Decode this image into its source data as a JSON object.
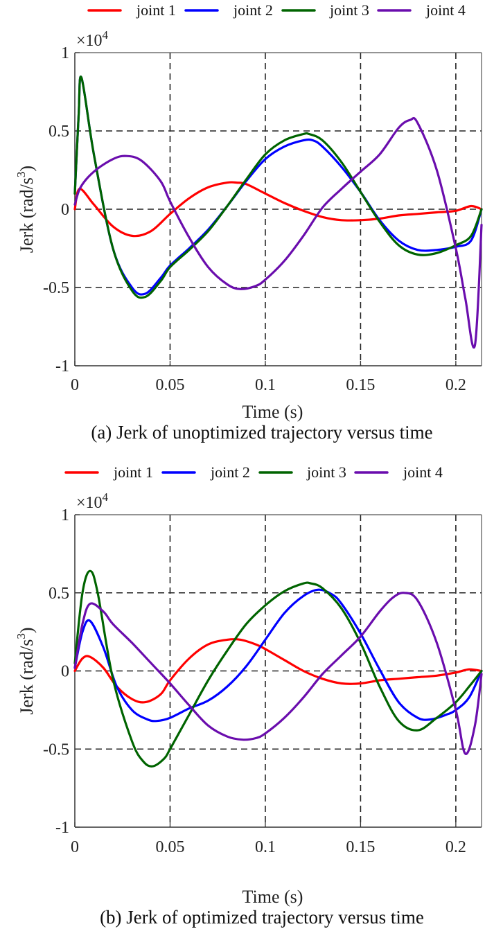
{
  "chart_data": [
    {
      "type": "line",
      "id": "a",
      "caption": "(a) Jerk of unoptimized trajectory versus time",
      "xlabel": "Time (s)",
      "ylabel": "Jerk (rad/s",
      "ylabel_sup": "3",
      "ylabel_close": ")",
      "y_multiplier": "×10",
      "y_multiplier_exp": "4",
      "xlim": [
        0,
        0.2135
      ],
      "ylim": [
        -1,
        1
      ],
      "xticks": [
        0,
        0.05,
        0.1,
        0.15,
        0.2
      ],
      "xtick_labels": [
        "0",
        "0.05",
        "0.1",
        "0.15",
        "0.2"
      ],
      "yticks": [
        -1,
        -0.5,
        0,
        0.5,
        1
      ],
      "ytick_labels": [
        "-1",
        "-0.5",
        "0",
        "0.5",
        "1"
      ],
      "grid": true,
      "legend": "top",
      "series": [
        {
          "name": "joint 1",
          "color": "#ff0000",
          "x": [
            0,
            0.0025,
            0.01,
            0.02,
            0.03,
            0.04,
            0.05,
            0.06,
            0.07,
            0.08,
            0.085,
            0.09,
            0.1,
            0.11,
            0.12,
            0.13,
            0.14,
            0.15,
            0.16,
            0.17,
            0.18,
            0.19,
            0.2,
            0.208,
            0.2135
          ],
          "y": [
            0,
            0.13,
            0.03,
            -0.11,
            -0.17,
            -0.14,
            -0.03,
            0.07,
            0.14,
            0.17,
            0.17,
            0.16,
            0.1,
            0.04,
            -0.01,
            -0.05,
            -0.07,
            -0.07,
            -0.06,
            -0.04,
            -0.03,
            -0.02,
            -0.01,
            0.02,
            0
          ]
        },
        {
          "name": "joint 2",
          "color": "#0000ff",
          "x": [
            0,
            0.002,
            0.0035,
            0.01,
            0.02,
            0.03,
            0.037,
            0.045,
            0.05,
            0.06,
            0.07,
            0.08,
            0.09,
            0.1,
            0.11,
            0.12,
            0.125,
            0.13,
            0.14,
            0.15,
            0.16,
            0.17,
            0.18,
            0.19,
            0.2,
            0.208,
            0.2135
          ],
          "y": [
            0.1,
            0.6,
            0.84,
            0.35,
            -0.25,
            -0.5,
            -0.54,
            -0.44,
            -0.36,
            -0.25,
            -0.13,
            0.02,
            0.18,
            0.32,
            0.4,
            0.44,
            0.44,
            0.4,
            0.27,
            0.11,
            -0.07,
            -0.2,
            -0.26,
            -0.26,
            -0.24,
            -0.2,
            0
          ]
        },
        {
          "name": "joint 3",
          "color": "#006400",
          "x": [
            0,
            0.002,
            0.0035,
            0.01,
            0.02,
            0.03,
            0.037,
            0.045,
            0.05,
            0.06,
            0.07,
            0.08,
            0.09,
            0.1,
            0.11,
            0.12,
            0.123,
            0.13,
            0.14,
            0.15,
            0.16,
            0.17,
            0.18,
            0.19,
            0.2,
            0.208,
            0.2135
          ],
          "y": [
            0.1,
            0.6,
            0.84,
            0.35,
            -0.25,
            -0.52,
            -0.56,
            -0.46,
            -0.37,
            -0.26,
            -0.14,
            0.02,
            0.19,
            0.35,
            0.44,
            0.48,
            0.48,
            0.44,
            0.3,
            0.11,
            -0.08,
            -0.23,
            -0.29,
            -0.28,
            -0.23,
            -0.17,
            0
          ]
        },
        {
          "name": "joint 4",
          "color": "#6a0dad",
          "x": [
            0,
            0.003,
            0.01,
            0.02,
            0.027,
            0.035,
            0.045,
            0.05,
            0.06,
            0.07,
            0.08,
            0.087,
            0.095,
            0.1,
            0.11,
            0.12,
            0.13,
            0.14,
            0.15,
            0.16,
            0.17,
            0.176,
            0.18,
            0.19,
            0.2,
            0.205,
            0.21,
            0.2135
          ],
          "y": [
            0.03,
            0.14,
            0.24,
            0.32,
            0.34,
            0.31,
            0.18,
            0.05,
            -0.18,
            -0.37,
            -0.48,
            -0.51,
            -0.49,
            -0.45,
            -0.33,
            -0.17,
            0.01,
            0.13,
            0.24,
            0.35,
            0.52,
            0.57,
            0.55,
            0.25,
            -0.25,
            -0.57,
            -0.87,
            -0.1
          ]
        }
      ]
    },
    {
      "type": "line",
      "id": "b",
      "caption": "(b) Jerk of optimized trajectory versus time",
      "xlabel": "Time (s)",
      "ylabel": "Jerk (rad/s",
      "ylabel_sup": "3",
      "ylabel_close": ")",
      "y_multiplier": "×10",
      "y_multiplier_exp": "4",
      "xlim": [
        0,
        0.2135
      ],
      "ylim": [
        -1,
        1
      ],
      "xticks": [
        0,
        0.05,
        0.1,
        0.15,
        0.2
      ],
      "xtick_labels": [
        "0",
        "0.05",
        "0.1",
        "0.15",
        "0.2"
      ],
      "yticks": [
        -1,
        -0.5,
        0,
        0.5,
        1
      ],
      "ytick_labels": [
        "-1",
        "-0.5",
        "0",
        "0.5",
        "1"
      ],
      "grid": true,
      "legend": "top",
      "series": [
        {
          "name": "joint 1",
          "color": "#ff0000",
          "x": [
            0,
            0.004,
            0.008,
            0.015,
            0.022,
            0.03,
            0.037,
            0.045,
            0.05,
            0.06,
            0.07,
            0.08,
            0.087,
            0.095,
            0.1,
            0.11,
            0.12,
            0.13,
            0.14,
            0.15,
            0.16,
            0.17,
            0.18,
            0.19,
            0.2,
            0.207,
            0.2135
          ],
          "y": [
            0,
            0.08,
            0.09,
            0.02,
            -0.1,
            -0.18,
            -0.2,
            -0.15,
            -0.06,
            0.08,
            0.17,
            0.2,
            0.2,
            0.17,
            0.14,
            0.07,
            0.0,
            -0.05,
            -0.08,
            -0.08,
            -0.06,
            -0.05,
            -0.04,
            -0.03,
            -0.01,
            0.01,
            0
          ]
        },
        {
          "name": "joint 2",
          "color": "#0000ff",
          "x": [
            0,
            0.004,
            0.008,
            0.015,
            0.022,
            0.03,
            0.038,
            0.043,
            0.05,
            0.06,
            0.07,
            0.08,
            0.09,
            0.1,
            0.11,
            0.12,
            0.128,
            0.135,
            0.14,
            0.15,
            0.16,
            0.17,
            0.18,
            0.187,
            0.195,
            0.2,
            0.207,
            0.2135
          ],
          "y": [
            0.02,
            0.25,
            0.32,
            0.15,
            -0.1,
            -0.25,
            -0.31,
            -0.32,
            -0.3,
            -0.24,
            -0.19,
            -0.1,
            0.03,
            0.2,
            0.37,
            0.48,
            0.52,
            0.49,
            0.43,
            0.24,
            0.01,
            -0.2,
            -0.3,
            -0.31,
            -0.28,
            -0.25,
            -0.17,
            0
          ]
        },
        {
          "name": "joint 3",
          "color": "#006400",
          "x": [
            0,
            0.004,
            0.008,
            0.012,
            0.02,
            0.03,
            0.036,
            0.041,
            0.047,
            0.05,
            0.06,
            0.07,
            0.08,
            0.09,
            0.1,
            0.11,
            0.12,
            0.124,
            0.13,
            0.14,
            0.15,
            0.16,
            0.17,
            0.18,
            0.19,
            0.2,
            0.207,
            0.2135
          ],
          "y": [
            0.05,
            0.5,
            0.64,
            0.5,
            -0.05,
            -0.45,
            -0.58,
            -0.61,
            -0.56,
            -0.5,
            -0.28,
            -0.06,
            0.13,
            0.3,
            0.42,
            0.51,
            0.56,
            0.56,
            0.53,
            0.4,
            0.18,
            -0.1,
            -0.32,
            -0.38,
            -0.3,
            -0.2,
            -0.1,
            0
          ]
        },
        {
          "name": "joint 4",
          "color": "#6a0dad",
          "x": [
            0,
            0.004,
            0.008,
            0.015,
            0.02,
            0.03,
            0.04,
            0.05,
            0.06,
            0.07,
            0.08,
            0.088,
            0.095,
            0.1,
            0.11,
            0.12,
            0.13,
            0.14,
            0.15,
            0.16,
            0.167,
            0.173,
            0.18,
            0.19,
            0.2,
            0.205,
            0.21,
            0.2135
          ],
          "y": [
            0.02,
            0.3,
            0.43,
            0.38,
            0.3,
            0.18,
            0.05,
            -0.08,
            -0.22,
            -0.35,
            -0.42,
            -0.44,
            -0.43,
            -0.4,
            -0.3,
            -0.17,
            -0.02,
            0.1,
            0.22,
            0.38,
            0.47,
            0.5,
            0.45,
            0.18,
            -0.25,
            -0.53,
            -0.35,
            -0.02
          ]
        }
      ]
    }
  ]
}
